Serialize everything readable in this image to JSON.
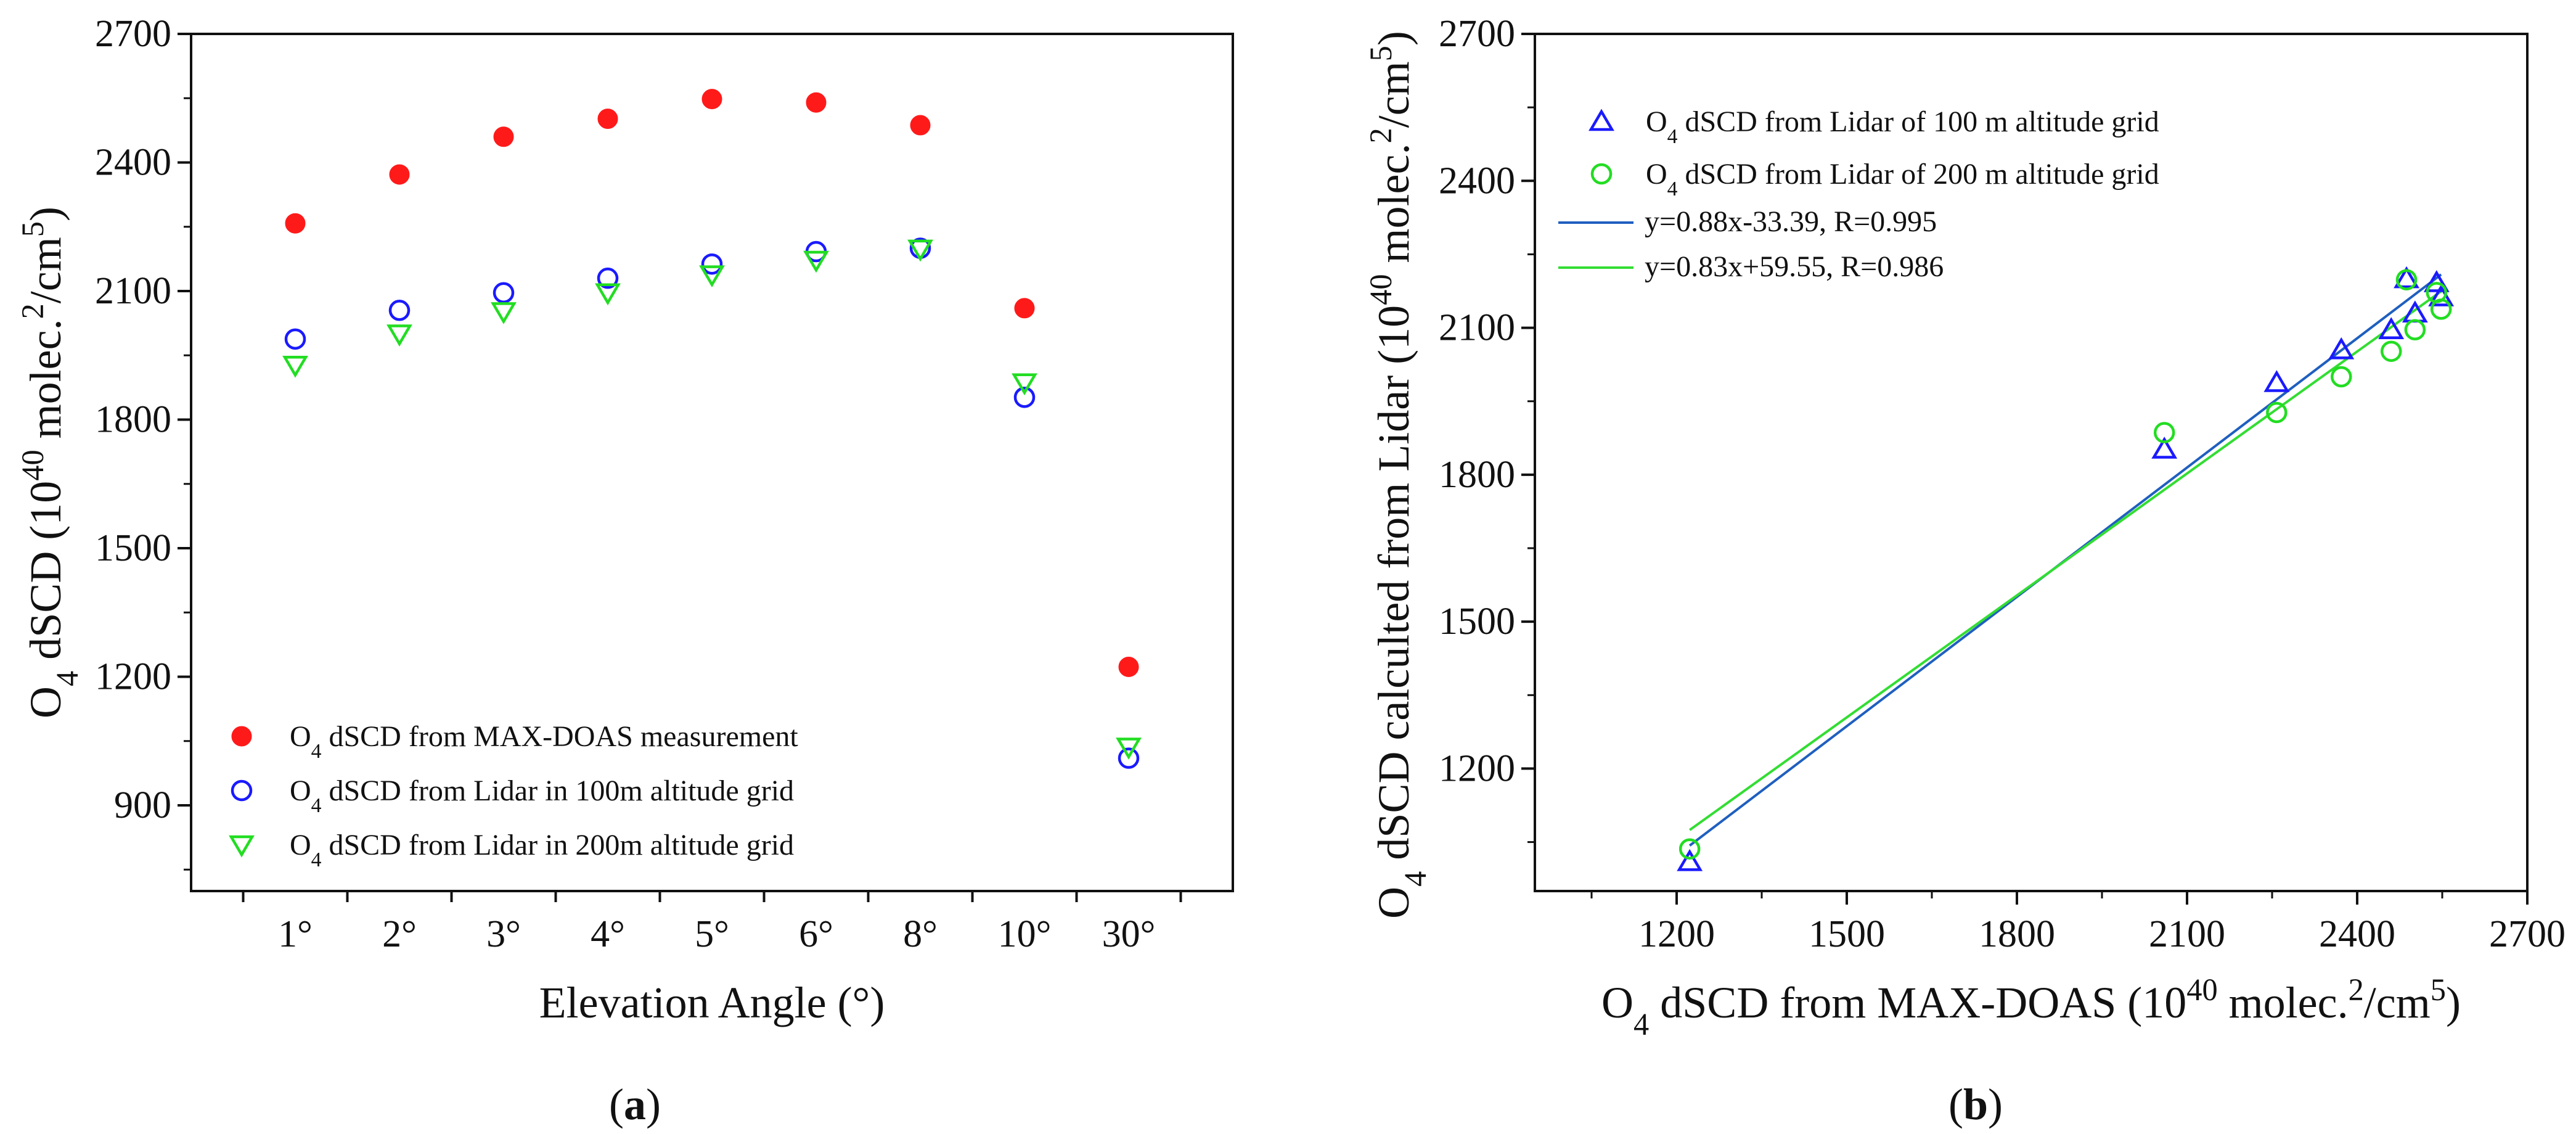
{
  "colors": {
    "maxdoas": "#ff1a1a",
    "lidar100": "#1a1aff",
    "lidar200": "#22dd22",
    "fit100": "#1f5fbf",
    "fit200": "#33dd33",
    "axis": "#111111"
  },
  "chart_data": [
    {
      "panel": "(a)",
      "panel_letter": "a",
      "type": "scatter",
      "categories": [
        "1°",
        "2°",
        "3°",
        "4°",
        "5°",
        "6°",
        "8°",
        "10°",
        "30°"
      ],
      "xlabel": "Elevation Angle (°)",
      "ylabel": {
        "base": "O",
        "sub": "4",
        "mid": " dSCD (10",
        "sup1": "40",
        "mid2": " molec.",
        "sup2": "2",
        "mid3": "/cm",
        "sup3": "5",
        "end": ")"
      },
      "ylim": [
        700,
        2700
      ],
      "yticks": [
        900,
        1200,
        1500,
        1800,
        2100,
        2400,
        2700
      ],
      "legend_position": "bottom-left",
      "series": [
        {
          "key": "maxdoas",
          "name": "O4 dSCD from MAX-DOAS measurement",
          "label_sub": "4",
          "label_prefix": "O",
          "label_rest": " dSCD from MAX-DOAS measurement",
          "marker": "filled-circle",
          "color": "#ff1a1a",
          "x": [
            1,
            2,
            3,
            4,
            5,
            6,
            7,
            8,
            9
          ],
          "values": [
            2258,
            2372,
            2460,
            2502,
            2548,
            2540,
            2487,
            2060,
            1223
          ]
        },
        {
          "key": "lidar100",
          "name": "O4 dSCD from Lidar in 100m altitude grid",
          "label_sub": "4",
          "label_prefix": "O",
          "label_rest": " dSCD from Lidar in 100m altitude grid",
          "marker": "open-circle",
          "color": "#1a1aff",
          "x": [
            1,
            2,
            3,
            4,
            5,
            6,
            7,
            8,
            9
          ],
          "values": [
            1988,
            2055,
            2096,
            2130,
            2163,
            2192,
            2200,
            1852,
            1010
          ]
        },
        {
          "key": "lidar200",
          "name": "O4 dSCD from Lidar in 200m altitude grid",
          "label_sub": "4",
          "label_prefix": "O",
          "label_rest": " dSCD from Lidar in 200m altitude grid",
          "marker": "open-triangle-down",
          "color": "#22dd22",
          "x": [
            1,
            2,
            3,
            4,
            5,
            6,
            7,
            8,
            9
          ],
          "values": [
            1927,
            2000,
            2052,
            2096,
            2138,
            2172,
            2198,
            1886,
            1036
          ]
        }
      ]
    },
    {
      "panel": "(b)",
      "panel_letter": "b",
      "type": "scatter",
      "xlabel": {
        "base": "O",
        "sub": "4",
        "mid": " dSCD from MAX-DOAS (10",
        "sup1": "40",
        "mid2": " molec.",
        "sup2": "2",
        "mid3": "/cm",
        "sup3": "5",
        "end": ")"
      },
      "ylabel": {
        "base": "O",
        "sub": "4",
        "mid": " dSCD calculted from Lidar (10",
        "sup1": "40",
        "mid2": " molec.",
        "sup2": "2",
        "mid3": "/cm",
        "sup3": "5",
        "end": ")"
      },
      "xlim": [
        950,
        2700
      ],
      "ylim": [
        950,
        2700
      ],
      "xticks": [
        1200,
        1500,
        1800,
        2100,
        2400,
        2700
      ],
      "yticks": [
        1200,
        1500,
        1800,
        2100,
        2400,
        2700
      ],
      "legend_position": "top-left",
      "series": [
        {
          "key": "lidar100",
          "name": "O4 dSCD from Lidar of 100 m altitude grid",
          "label_sub": "4",
          "label_prefix": "O",
          "label_rest": " dSCD from Lidar of 100 m altitude grid",
          "marker": "open-triangle-up",
          "color": "#1a1aff",
          "x": [
            1223,
            2060,
            2258,
            2372,
            2460,
            2487,
            2502,
            2540,
            2548
          ],
          "values": [
            1010,
            1852,
            1988,
            2055,
            2096,
            2200,
            2130,
            2192,
            2163
          ]
        },
        {
          "key": "lidar200",
          "name": "O4 dSCD from Lidar of 200 m altitude grid",
          "label_sub": "4",
          "label_prefix": "O",
          "label_rest": " dSCD from Lidar of 200 m altitude grid",
          "marker": "open-circle",
          "color": "#22dd22",
          "x": [
            1223,
            2060,
            2258,
            2372,
            2460,
            2487,
            2502,
            2540,
            2548
          ],
          "values": [
            1036,
            1886,
            1927,
            2000,
            2052,
            2198,
            2096,
            2172,
            2138
          ]
        }
      ],
      "fits": [
        {
          "key": "fit100",
          "label": "y=0.88x-33.39,  R=0.995",
          "slope": 0.88,
          "intercept": -33.39,
          "x_range": [
            1223,
            2548
          ],
          "color": "#1f5fbf"
        },
        {
          "key": "fit200",
          "label": "y=0.83x+59.55, R=0.986",
          "slope": 0.83,
          "intercept": 59.55,
          "x_range": [
            1223,
            2548
          ],
          "color": "#33dd33"
        }
      ]
    }
  ]
}
